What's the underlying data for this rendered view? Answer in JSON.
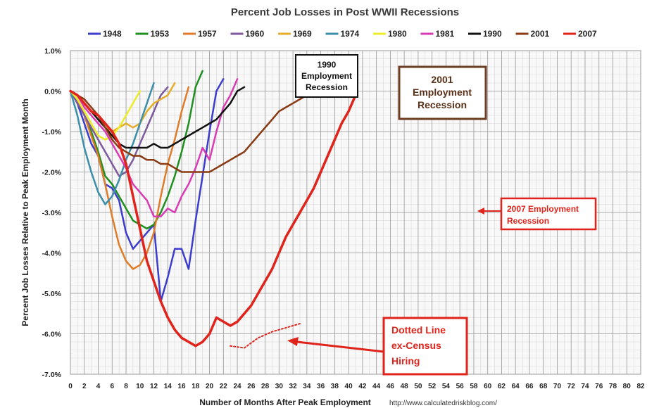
{
  "chart_data": {
    "type": "line",
    "title": "Percent Job Losses in Post WWII Recessions",
    "xlabel": "Number of Months After Peak Employment",
    "ylabel": "Percent Job Losses Relative to Peak Employment Month",
    "source": "http://www.calculatedriskblog.com/",
    "xlim": [
      0,
      82
    ],
    "ylim": [
      -7.0,
      1.0
    ],
    "x_ticks": [
      0,
      2,
      4,
      6,
      8,
      10,
      12,
      14,
      16,
      18,
      20,
      22,
      24,
      26,
      28,
      30,
      32,
      34,
      36,
      38,
      40,
      42,
      44,
      46,
      48,
      50,
      52,
      54,
      56,
      58,
      60,
      62,
      64,
      66,
      68,
      70,
      72,
      74,
      76,
      78,
      80,
      82
    ],
    "y_ticks": [
      1.0,
      0.0,
      -1.0,
      -2.0,
      -3.0,
      -4.0,
      -5.0,
      -6.0,
      -7.0
    ],
    "y_tick_labels": [
      "1.0%",
      "0.0%",
      "-1.0%",
      "-2.0%",
      "-3.0%",
      "-4.0%",
      "-5.0%",
      "-6.0%",
      "-7.0%"
    ],
    "legend_position": "top",
    "series": [
      {
        "name": "1948",
        "color": "#3c3ccf",
        "width": 2.5,
        "values": [
          0,
          -0.3,
          -0.8,
          -1.3,
          -1.6,
          -2.3,
          -2.4,
          -2.7,
          -3.5,
          -3.9,
          -3.7,
          -3.5,
          -3.3,
          -5.2,
          -4.6,
          -3.9,
          -3.9,
          -4.4,
          -3.2,
          -2.1,
          -1.0,
          0.0,
          0.3
        ]
      },
      {
        "name": "1953",
        "color": "#1f8f1f",
        "width": 2.5,
        "values": [
          0,
          -0.2,
          -0.6,
          -1.0,
          -1.5,
          -2.1,
          -2.3,
          -2.6,
          -2.9,
          -3.2,
          -3.3,
          -3.4,
          -3.3,
          -3.0,
          -2.6,
          -2.1,
          -1.5,
          -0.8,
          0.1,
          0.5
        ]
      },
      {
        "name": "1957",
        "color": "#e07b28",
        "width": 2.5,
        "values": [
          0,
          -0.2,
          -0.6,
          -1.1,
          -1.6,
          -2.3,
          -3.1,
          -3.8,
          -4.2,
          -4.4,
          -4.3,
          -4.0,
          -3.5,
          -2.6,
          -1.8,
          -1.2,
          -0.5,
          0.1
        ]
      },
      {
        "name": "1960",
        "color": "#7d5a9e",
        "width": 2.5,
        "values": [
          0,
          -0.3,
          -0.6,
          -0.9,
          -1.2,
          -1.5,
          -1.8,
          -2.1,
          -2.0,
          -1.7,
          -1.3,
          -0.9,
          -0.5,
          -0.1,
          0.1
        ]
      },
      {
        "name": "1969",
        "color": "#e6ad2a",
        "width": 2.5,
        "values": [
          0,
          -0.1,
          -0.3,
          -0.5,
          -0.7,
          -0.9,
          -1.0,
          -0.9,
          -0.8,
          -0.9,
          -0.8,
          -0.5,
          -0.3,
          -0.2,
          -0.1,
          0.2
        ]
      },
      {
        "name": "1974",
        "color": "#3d8ea8",
        "width": 2.5,
        "values": [
          0,
          -0.6,
          -1.4,
          -2.0,
          -2.5,
          -2.8,
          -2.6,
          -2.2,
          -1.7,
          -1.3,
          -0.8,
          -0.3,
          0.2
        ]
      },
      {
        "name": "1980",
        "color": "#ecec28",
        "width": 2.5,
        "values": [
          0,
          -0.2,
          -0.5,
          -0.8,
          -1.1,
          -1.2,
          -1.1,
          -0.9,
          -0.6,
          -0.3,
          0.0
        ]
      },
      {
        "name": "1981",
        "color": "#d93bb4",
        "width": 2.5,
        "values": [
          0,
          -0.1,
          -0.4,
          -0.6,
          -0.8,
          -1.0,
          -1.3,
          -1.6,
          -1.9,
          -2.3,
          -2.5,
          -2.7,
          -3.1,
          -3.1,
          -2.9,
          -3.0,
          -2.6,
          -2.3,
          -1.9,
          -1.4,
          -1.7,
          -1.0,
          -0.4,
          -0.1,
          0.3
        ]
      },
      {
        "name": "1990",
        "color": "#111111",
        "width": 2.5,
        "values": [
          0,
          -0.1,
          -0.3,
          -0.5,
          -0.7,
          -0.9,
          -1.1,
          -1.3,
          -1.4,
          -1.4,
          -1.4,
          -1.4,
          -1.3,
          -1.4,
          -1.4,
          -1.3,
          -1.2,
          -1.1,
          -1.0,
          -0.9,
          -0.8,
          -0.7,
          -0.5,
          -0.3,
          0.0,
          0.1
        ]
      },
      {
        "name": "2001",
        "color": "#8a3a13",
        "width": 2.5,
        "values": [
          0,
          -0.1,
          -0.2,
          -0.4,
          -0.6,
          -0.9,
          -1.2,
          -1.4,
          -1.5,
          -1.6,
          -1.6,
          -1.7,
          -1.7,
          -1.8,
          -1.8,
          -1.9,
          -2.0,
          -2.0,
          -2.0,
          -2.0,
          -2.0,
          -1.9,
          -1.8,
          -1.7,
          -1.6,
          -1.5,
          -1.3,
          -1.1,
          -0.9,
          -0.7,
          -0.5,
          -0.4,
          -0.3,
          -0.2,
          -0.1,
          0.1
        ]
      },
      {
        "name": "2007",
        "color": "#e0231b",
        "width": 3.5,
        "values": [
          0,
          -0.1,
          -0.3,
          -0.5,
          -0.6,
          -0.8,
          -1.0,
          -1.3,
          -1.8,
          -2.6,
          -3.4,
          -4.2,
          -4.7,
          -5.2,
          -5.6,
          -5.9,
          -6.1,
          -6.2,
          -6.3,
          -6.2,
          -6.0,
          -5.6,
          -5.7,
          -5.8,
          -5.7,
          -5.5,
          -5.3,
          -5.0,
          -4.7,
          -4.4,
          -4.0,
          -3.6,
          -3.3,
          -3.0,
          -2.7,
          -2.4,
          -2.0,
          -1.6,
          -1.2,
          -0.8,
          -0.5,
          -0.1
        ]
      },
      {
        "name": "2007 ex-Census",
        "color": "#e0231b",
        "width": 2,
        "dashed": true,
        "in_legend": false,
        "x": [
          23,
          25,
          27,
          29,
          31,
          33
        ],
        "values": [
          -6.3,
          -6.35,
          -6.1,
          -5.95,
          -5.85,
          -5.75
        ]
      }
    ],
    "annotations": [
      {
        "lines": [
          "1990",
          "Employment",
          "Recession"
        ],
        "style": "black-box"
      },
      {
        "lines": [
          "2001",
          "Employment",
          "Recession"
        ],
        "style": "brown-box"
      },
      {
        "lines": [
          "2007 Employment",
          "Recession"
        ],
        "style": "red-box"
      },
      {
        "lines": [
          "Dotted Line",
          "ex-Census",
          "Hiring"
        ],
        "style": "red-callout"
      }
    ]
  }
}
